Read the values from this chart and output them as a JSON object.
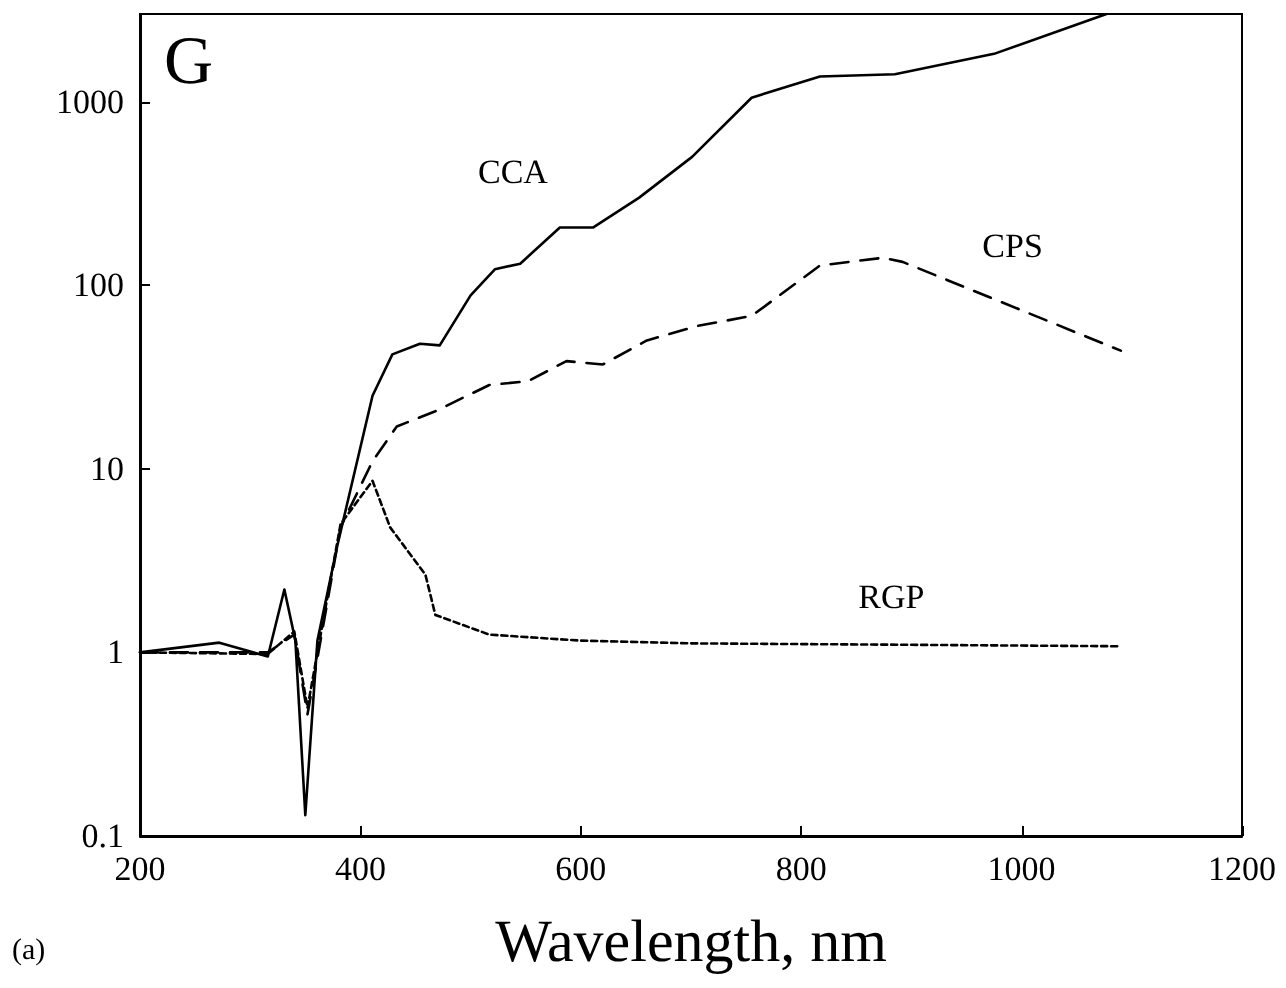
{
  "chart_data": {
    "type": "line",
    "xlabel": "Wavelength, nm",
    "annotations": [
      "G",
      "(a)"
    ],
    "xlim": [
      200,
      1200
    ],
    "xticks": [
      200,
      400,
      600,
      800,
      1000,
      1200
    ],
    "ylim": [
      0.1,
      3000
    ],
    "yticks": [
      0.1,
      1,
      10,
      100,
      1000
    ],
    "log": "y",
    "grid": false,
    "legend": false,
    "series": [
      {
        "name": "CCA",
        "color": "#000000",
        "line_style": "solid",
        "x": [
          200,
          272,
          316,
          331,
          341,
          350,
          361,
          379,
          411,
          429,
          454,
          472,
          500,
          522,
          545,
          581,
          611,
          653,
          701,
          755,
          817,
          885,
          975,
          1077
        ],
        "values": [
          1.0,
          1.13,
          0.95,
          2.2,
          1.16,
          0.13,
          1.16,
          3.8,
          25,
          42,
          48,
          47,
          88,
          122,
          131,
          206,
          206,
          300,
          500,
          1050,
          1370,
          1410,
          1820,
          3000
        ]
      },
      {
        "name": "CPS",
        "color": "#000000",
        "line_style": "dashed",
        "x": [
          200,
          316,
          340,
          352,
          382,
          411,
          433,
          468,
          517,
          552,
          587,
          620,
          660,
          706,
          755,
          817,
          874,
          892,
          1090
        ],
        "values": [
          1.0,
          1.0,
          1.25,
          0.46,
          4.8,
          11,
          17,
          20.6,
          28.6,
          30,
          38.6,
          37,
          50,
          60,
          68,
          128,
          141,
          134,
          44
        ]
      },
      {
        "name": "RGP",
        "color": "#000000",
        "line_style": "dotted",
        "x": [
          200,
          316,
          340,
          352,
          382,
          411,
          427,
          459,
          468,
          517,
          599,
          700,
          900,
          1090
        ],
        "values": [
          1.0,
          0.98,
          1.3,
          0.5,
          5,
          8.6,
          4.8,
          2.65,
          1.6,
          1.25,
          1.16,
          1.12,
          1.1,
          1.08
        ]
      }
    ]
  }
}
